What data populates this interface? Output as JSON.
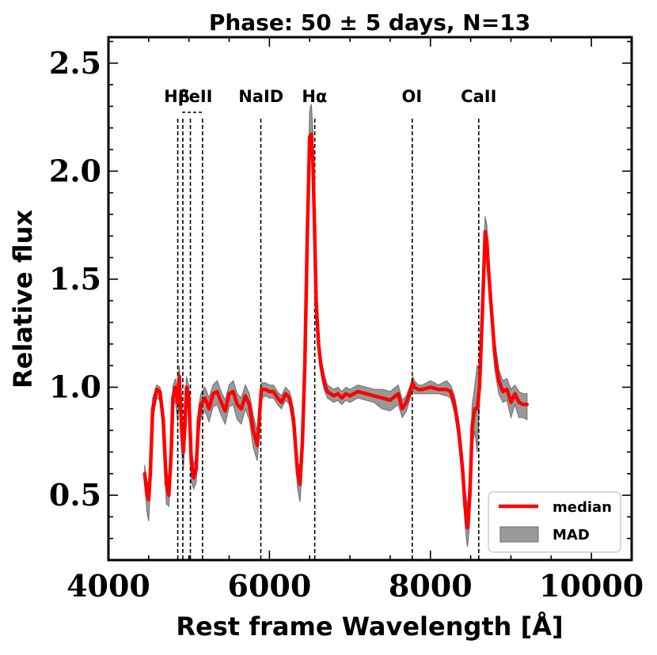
{
  "chart_data": {
    "type": "line",
    "title": "Phase: 50 ± 5 days, N=13",
    "xlabel": "Rest frame Wavelength [Å]",
    "ylabel": "Relative flux",
    "xlim": [
      4000,
      10500
    ],
    "ylim": [
      0.2,
      2.62
    ],
    "xticks": [
      4000,
      6000,
      8000,
      10000
    ],
    "xtick_labels": [
      "4000",
      "6000",
      "8000",
      "10000"
    ],
    "yticks": [
      0.5,
      1.0,
      1.5,
      2.0,
      2.5
    ],
    "ytick_labels": [
      "0.5",
      "1.0",
      "1.5",
      "2.0",
      "2.5"
    ],
    "reference_lines": [
      {
        "name": "h-beta",
        "x": 4861
      },
      {
        "name": "feii-1",
        "x": 4924
      },
      {
        "name": "feii-2",
        "x": 5018
      },
      {
        "name": "feii-3",
        "x": 5169
      },
      {
        "name": "naid",
        "x": 5893
      },
      {
        "name": "h-alpha",
        "x": 6563
      },
      {
        "name": "oi",
        "x": 7774
      },
      {
        "name": "caii",
        "x": 8600
      }
    ],
    "line_labels": [
      {
        "name": "h-beta",
        "text": "Hβ",
        "x": 4850
      },
      {
        "name": "feii",
        "text": "FeII",
        "x": 5080
      },
      {
        "name": "naid",
        "text": "NaID",
        "x": 5895
      },
      {
        "name": "h-alpha",
        "text": "Hα",
        "x": 6560
      },
      {
        "name": "oi",
        "text": "OI",
        "x": 7770
      },
      {
        "name": "caii",
        "text": "CaII",
        "x": 8600
      }
    ],
    "series": [
      {
        "name": "median",
        "color": "#ff0000",
        "x": [
          4450,
          4480,
          4500,
          4520,
          4550,
          4600,
          4640,
          4680,
          4720,
          4750,
          4780,
          4800,
          4830,
          4860,
          4880,
          4910,
          4930,
          4950,
          4970,
          5000,
          5030,
          5060,
          5090,
          5120,
          5150,
          5200,
          5250,
          5300,
          5350,
          5400,
          5450,
          5500,
          5550,
          5600,
          5650,
          5700,
          5750,
          5800,
          5850,
          5900,
          5950,
          6000,
          6050,
          6100,
          6150,
          6200,
          6250,
          6300,
          6350,
          6380,
          6410,
          6440,
          6470,
          6500,
          6520,
          6540,
          6560,
          6580,
          6610,
          6640,
          6680,
          6720,
          6760,
          6800,
          6850,
          6900,
          6950,
          7000,
          7100,
          7200,
          7300,
          7400,
          7500,
          7600,
          7650,
          7700,
          7750,
          7780,
          7800,
          7850,
          7900,
          8000,
          8100,
          8200,
          8250,
          8300,
          8350,
          8400,
          8430,
          8460,
          8490,
          8520,
          8550,
          8580,
          8610,
          8640,
          8660,
          8680,
          8700,
          8720,
          8750,
          8800,
          8850,
          8900,
          8950,
          9000,
          9050,
          9100,
          9150,
          9200
        ],
        "y": [
          0.6,
          0.5,
          0.48,
          0.6,
          0.9,
          0.99,
          0.98,
          0.85,
          0.55,
          0.5,
          0.7,
          0.95,
          1.0,
          0.93,
          1.05,
          0.8,
          0.7,
          0.82,
          1.0,
          0.95,
          0.65,
          0.58,
          0.62,
          0.85,
          0.92,
          0.95,
          0.9,
          0.97,
          0.98,
          0.93,
          0.89,
          0.97,
          0.98,
          0.92,
          0.9,
          0.96,
          0.92,
          0.8,
          0.73,
          0.99,
          0.99,
          0.98,
          0.98,
          0.95,
          0.93,
          0.97,
          0.95,
          0.85,
          0.6,
          0.55,
          0.75,
          1.1,
          1.7,
          2.16,
          2.17,
          2.05,
          1.75,
          1.4,
          1.2,
          1.1,
          1.02,
          0.98,
          0.97,
          0.96,
          0.97,
          0.95,
          0.97,
          0.96,
          0.98,
          0.97,
          0.96,
          0.95,
          0.94,
          0.97,
          0.9,
          0.93,
          0.98,
          1.02,
          1.0,
          0.99,
          0.99,
          1.0,
          0.99,
          0.99,
          0.98,
          0.92,
          0.8,
          0.62,
          0.45,
          0.35,
          0.5,
          0.82,
          0.9,
          0.9,
          1.0,
          1.3,
          1.5,
          1.72,
          1.68,
          1.55,
          1.4,
          1.15,
          1.03,
          0.98,
          0.99,
          0.93,
          0.97,
          0.93,
          0.92,
          0.92
        ]
      },
      {
        "name": "MAD",
        "color": "#999999",
        "edgecolor": "#777777",
        "x": [
          4450,
          4480,
          4500,
          4520,
          4550,
          4600,
          4640,
          4680,
          4720,
          4750,
          4780,
          4800,
          4830,
          4860,
          4880,
          4910,
          4930,
          4950,
          4970,
          5000,
          5030,
          5060,
          5090,
          5120,
          5150,
          5200,
          5250,
          5300,
          5350,
          5400,
          5450,
          5500,
          5550,
          5600,
          5650,
          5700,
          5750,
          5800,
          5850,
          5900,
          5950,
          6000,
          6050,
          6100,
          6150,
          6200,
          6250,
          6300,
          6350,
          6380,
          6410,
          6440,
          6470,
          6500,
          6520,
          6540,
          6560,
          6580,
          6610,
          6640,
          6680,
          6720,
          6760,
          6800,
          6850,
          6900,
          6950,
          7000,
          7100,
          7200,
          7300,
          7400,
          7500,
          7600,
          7650,
          7700,
          7750,
          7780,
          7800,
          7850,
          7900,
          8000,
          8100,
          8200,
          8250,
          8300,
          8350,
          8400,
          8430,
          8460,
          8490,
          8520,
          8550,
          8580,
          8610,
          8640,
          8660,
          8680,
          8700,
          8720,
          8750,
          8800,
          8850,
          8900,
          8950,
          9000,
          9050,
          9100,
          9150,
          9200
        ],
        "lower": [
          0.55,
          0.42,
          0.38,
          0.52,
          0.85,
          0.95,
          0.94,
          0.78,
          0.46,
          0.45,
          0.63,
          0.9,
          0.94,
          0.84,
          0.95,
          0.7,
          0.62,
          0.74,
          0.93,
          0.88,
          0.56,
          0.53,
          0.56,
          0.77,
          0.86,
          0.89,
          0.84,
          0.91,
          0.92,
          0.87,
          0.83,
          0.91,
          0.92,
          0.85,
          0.83,
          0.9,
          0.85,
          0.72,
          0.66,
          0.95,
          0.96,
          0.95,
          0.95,
          0.92,
          0.9,
          0.94,
          0.92,
          0.79,
          0.53,
          0.47,
          0.66,
          1.0,
          1.6,
          2.06,
          2.12,
          2.0,
          1.7,
          1.35,
          1.16,
          1.06,
          0.99,
          0.95,
          0.94,
          0.93,
          0.94,
          0.92,
          0.94,
          0.93,
          0.95,
          0.94,
          0.93,
          0.9,
          0.89,
          0.92,
          0.86,
          0.89,
          0.95,
          0.99,
          0.97,
          0.97,
          0.97,
          0.97,
          0.97,
          0.96,
          0.95,
          0.88,
          0.75,
          0.55,
          0.36,
          0.26,
          0.38,
          0.72,
          0.8,
          0.7,
          0.92,
          1.22,
          1.43,
          1.66,
          1.62,
          1.49,
          1.34,
          1.08,
          0.97,
          0.93,
          0.94,
          0.86,
          0.92,
          0.86,
          0.86,
          0.85
        ],
        "upper": [
          0.64,
          0.56,
          0.55,
          0.66,
          0.95,
          1.01,
          1.0,
          0.9,
          0.62,
          0.56,
          0.77,
          1.0,
          1.04,
          0.99,
          1.1,
          0.88,
          0.77,
          0.88,
          1.05,
          1.0,
          0.72,
          0.64,
          0.68,
          0.91,
          0.97,
          1.0,
          0.95,
          1.01,
          1.03,
          0.98,
          0.94,
          1.01,
          1.03,
          0.97,
          0.95,
          1.01,
          0.97,
          0.87,
          0.79,
          1.02,
          1.02,
          1.01,
          1.01,
          0.98,
          0.96,
          1.0,
          0.98,
          0.9,
          0.66,
          0.62,
          0.83,
          1.18,
          1.8,
          2.28,
          2.31,
          2.18,
          1.83,
          1.48,
          1.25,
          1.14,
          1.06,
          1.01,
          1.0,
          0.99,
          1.0,
          0.98,
          1.0,
          0.99,
          1.01,
          1.0,
          0.99,
          0.99,
          0.98,
          1.01,
          0.94,
          0.96,
          1.01,
          1.05,
          1.03,
          1.01,
          1.01,
          1.03,
          1.01,
          1.03,
          1.01,
          0.96,
          0.85,
          0.69,
          0.53,
          0.44,
          0.62,
          0.92,
          1.0,
          1.1,
          1.08,
          1.38,
          1.57,
          1.79,
          1.75,
          1.61,
          1.46,
          1.22,
          1.08,
          1.03,
          1.04,
          0.99,
          1.01,
          0.98,
          0.97,
          0.97
        ]
      }
    ],
    "legend": {
      "position": "bottom-right",
      "entries": [
        "median",
        "MAD"
      ]
    }
  }
}
